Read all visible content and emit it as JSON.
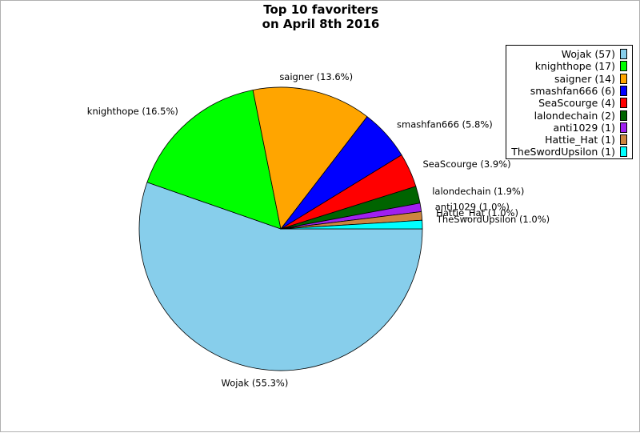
{
  "chart_data": {
    "type": "pie",
    "title_lines": [
      "Top 10 favoriters",
      "on April 8th 2016"
    ],
    "slices": [
      {
        "label": "Wojak (55.3%)",
        "legend": "Wojak (57)",
        "value": 57,
        "color": "#87ceeb"
      },
      {
        "label": "knighthope (16.5%)",
        "legend": "knighthope (17)",
        "value": 17,
        "color": "#00ff00"
      },
      {
        "label": "saigner (13.6%)",
        "legend": "saigner (14)",
        "value": 14,
        "color": "#ffa500"
      },
      {
        "label": "smashfan666 (5.8%)",
        "legend": "smashfan666 (6)",
        "value": 6,
        "color": "#0000ff"
      },
      {
        "label": "SeaScourge (3.9%)",
        "legend": "SeaScourge (4)",
        "value": 4,
        "color": "#ff0000"
      },
      {
        "label": "lalondechain (1.9%)",
        "legend": "lalondechain (2)",
        "value": 2,
        "color": "#006400"
      },
      {
        "label": "anti1029 (1.0%)",
        "legend": "anti1029 (1)",
        "value": 1,
        "color": "#a020f0"
      },
      {
        "label": "Hattie_Hat (1.0%)",
        "legend": "Hattie_Hat (1)",
        "value": 1,
        "color": "#cd853f"
      },
      {
        "label": "TheSwordUpsilon (1.0%)",
        "legend": "TheSwordUpsilon (1)",
        "value": 1,
        "color": "#00ffff"
      }
    ],
    "legend_position": "top-right"
  }
}
